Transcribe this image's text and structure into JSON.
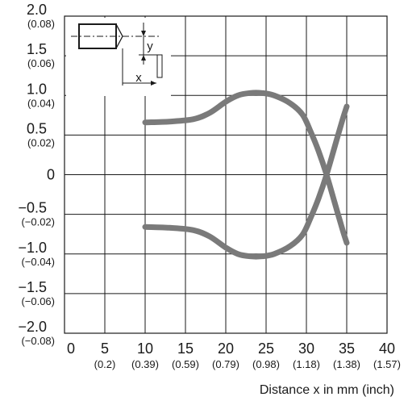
{
  "chart_data": {
    "type": "line",
    "title": "",
    "xlabel": "Distance x in mm (inch)",
    "ylabel": "",
    "xlim": [
      0,
      40
    ],
    "ylim": [
      -2.0,
      2.0
    ],
    "grid": true,
    "x_ticks": [
      {
        "value": 0,
        "label": "0",
        "sub": ""
      },
      {
        "value": 5,
        "label": "5",
        "sub": "(0.2)"
      },
      {
        "value": 10,
        "label": "10",
        "sub": "(0.39)"
      },
      {
        "value": 15,
        "label": "15",
        "sub": "(0.59)"
      },
      {
        "value": 20,
        "label": "20",
        "sub": "(0.79)"
      },
      {
        "value": 25,
        "label": "25",
        "sub": "(0.98)"
      },
      {
        "value": 30,
        "label": "30",
        "sub": "(1.18)"
      },
      {
        "value": 35,
        "label": "35",
        "sub": "(1.38)"
      },
      {
        "value": 40,
        "label": "40",
        "sub": "(1.57)"
      }
    ],
    "y_ticks": [
      {
        "value": 2.0,
        "label": "2.0",
        "sub": "(0.08)"
      },
      {
        "value": 1.5,
        "label": "1.5",
        "sub": "(0.06)"
      },
      {
        "value": 1.0,
        "label": "1.0",
        "sub": "(0.04)"
      },
      {
        "value": 0.5,
        "label": "0.5",
        "sub": "(0.02)"
      },
      {
        "value": 0,
        "label": "0",
        "sub": ""
      },
      {
        "value": -0.5,
        "label": "−0.5",
        "sub": "(−0.02)"
      },
      {
        "value": -1.0,
        "label": "−1.0",
        "sub": "(−0.04)"
      },
      {
        "value": -1.5,
        "label": "−1.5",
        "sub": "(−0.06)"
      },
      {
        "value": -2.0,
        "label": "−2.0",
        "sub": "(−0.08)"
      }
    ],
    "series": [
      {
        "x": [
          10,
          13,
          16,
          18,
          20,
          21.5,
          23,
          24.5,
          26,
          28,
          29.5,
          30.5,
          31.5,
          32.5,
          33.5,
          34.5,
          35
        ],
        "y": [
          0.66,
          0.67,
          0.7,
          0.78,
          0.92,
          1.0,
          1.03,
          1.03,
          1.0,
          0.9,
          0.76,
          0.55,
          0.3,
          0.0,
          -0.35,
          -0.7,
          -0.86
        ]
      },
      {
        "x": [
          10,
          13,
          16,
          18,
          20,
          21.5,
          23,
          24.5,
          26,
          28,
          29.5,
          30.5,
          31.5,
          32.5,
          33.5,
          34.5,
          35
        ],
        "y": [
          -0.66,
          -0.67,
          -0.7,
          -0.78,
          -0.92,
          -1.0,
          -1.03,
          -1.03,
          -1.0,
          -0.9,
          -0.76,
          -0.55,
          -0.3,
          0.0,
          0.35,
          0.7,
          0.86
        ]
      }
    ],
    "series_color": "#7a7a7a",
    "inset": {
      "x_label": "x",
      "y_label": "y"
    }
  }
}
